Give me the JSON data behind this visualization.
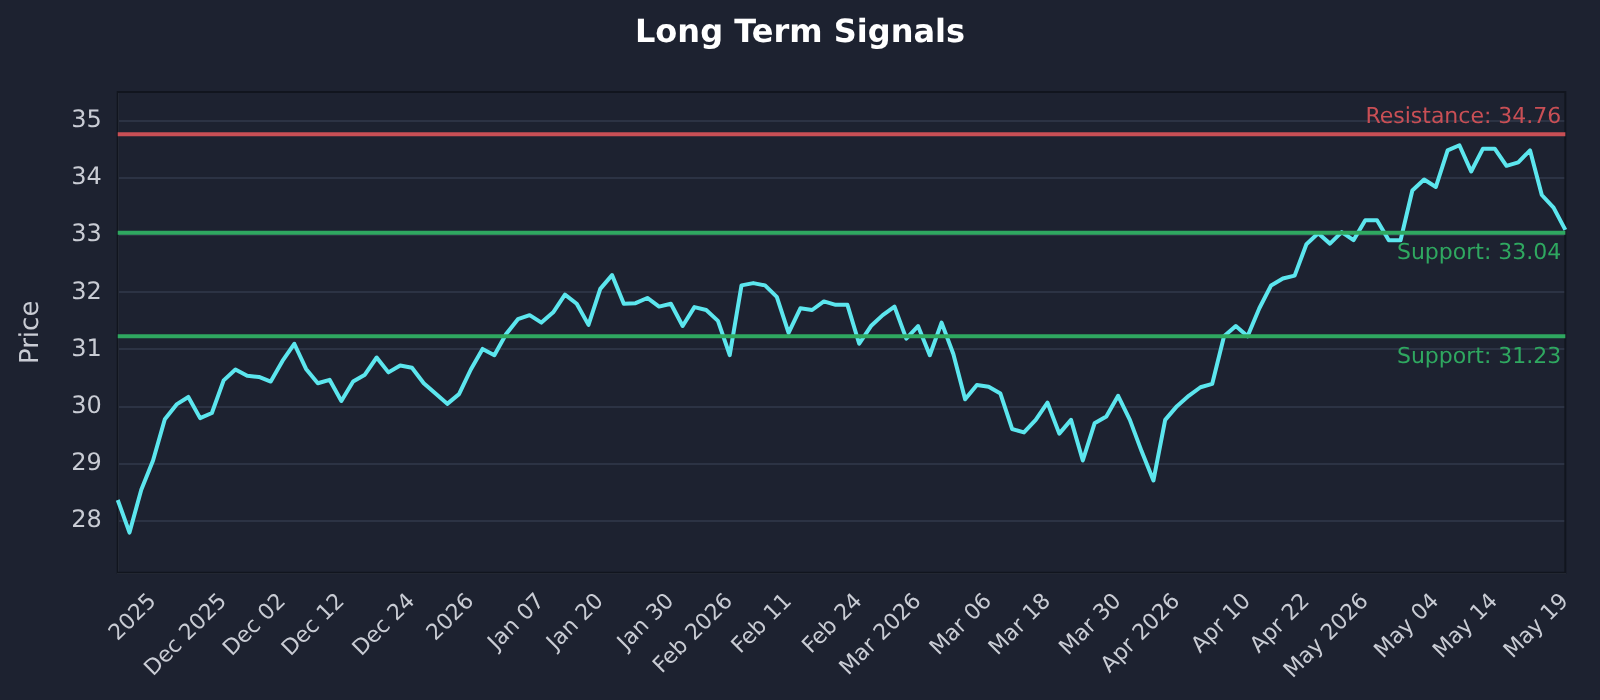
{
  "chart_data": {
    "type": "line",
    "title": "Long Term Signals",
    "ylabel": "Price",
    "categories": [
      null,
      null,
      null,
      "2025",
      null,
      null,
      null,
      null,
      null,
      "Dec 2025",
      null,
      null,
      null,
      null,
      "Dec 02",
      null,
      null,
      null,
      null,
      "Dec 12",
      null,
      null,
      null,
      null,
      null,
      "Dec 24",
      null,
      null,
      null,
      null,
      "2026",
      null,
      null,
      null,
      null,
      null,
      "Jan 07",
      null,
      null,
      null,
      null,
      "Jan 20",
      null,
      null,
      null,
      null,
      null,
      "Jan 30",
      null,
      null,
      null,
      null,
      "Feb 2026",
      null,
      null,
      null,
      null,
      "Feb 11",
      null,
      null,
      null,
      null,
      null,
      "Feb 24",
      null,
      null,
      null,
      null,
      "Mar 2026",
      null,
      null,
      null,
      null,
      null,
      "Mar 06",
      null,
      null,
      null,
      null,
      "Mar 18",
      null,
      null,
      null,
      null,
      null,
      "Mar 30",
      null,
      null,
      null,
      null,
      "Apr 2026",
      null,
      null,
      null,
      null,
      null,
      "Apr 10",
      null,
      null,
      null,
      null,
      "Apr 22",
      null,
      null,
      null,
      null,
      "May 2026",
      null,
      null,
      null,
      null,
      null,
      "May 04",
      null,
      null,
      null,
      null,
      "May 14",
      null,
      null,
      null,
      null,
      null,
      "May 19"
    ],
    "series": [
      {
        "color": "#5ce6ee",
        "values": [
          28.37,
          27.8,
          28.55,
          29.06,
          29.78,
          30.04,
          30.17,
          29.8,
          29.89,
          30.46,
          30.65,
          30.54,
          30.52,
          30.44,
          30.8,
          31.1,
          30.66,
          30.41,
          30.47,
          30.1,
          30.44,
          30.56,
          30.86,
          30.6,
          30.72,
          30.68,
          30.41,
          30.23,
          30.05,
          30.22,
          30.65,
          31.01,
          30.9,
          31.27,
          31.53,
          31.6,
          31.47,
          31.65,
          31.96,
          31.8,
          31.43,
          32.06,
          32.3,
          31.8,
          31.81,
          31.9,
          31.75,
          31.8,
          31.41,
          31.74,
          31.69,
          31.5,
          30.9,
          32.12,
          32.16,
          32.12,
          31.92,
          31.29,
          31.72,
          31.69,
          31.84,
          31.78,
          31.78,
          31.1,
          31.41,
          31.6,
          31.75,
          31.19,
          31.41,
          30.9,
          31.47,
          30.92,
          30.13,
          30.38,
          30.35,
          30.23,
          29.61,
          29.55,
          29.77,
          30.07,
          29.53,
          29.77,
          29.06,
          29.71,
          29.83,
          30.19,
          29.77,
          29.22,
          28.71,
          29.77,
          30.01,
          30.19,
          30.34,
          30.4,
          31.23,
          31.41,
          31.23,
          31.72,
          32.12,
          32.24,
          32.29,
          32.84,
          33.03,
          32.85,
          33.05,
          32.91,
          33.26,
          33.26,
          32.91,
          32.91,
          33.78,
          33.97,
          33.84,
          34.48,
          34.57,
          34.11,
          34.51,
          34.51,
          34.21,
          34.27,
          34.48,
          33.7,
          33.48,
          33.09
        ]
      }
    ],
    "ylim": [
      27.1,
      35.5
    ],
    "yticks": [
      28,
      29,
      30,
      31,
      32,
      33,
      34,
      35
    ],
    "grid": "y",
    "legend": false,
    "marker": "none",
    "line_style": "solid",
    "ref_lines": [
      {
        "axis": "y",
        "value": 34.76,
        "label": "Resistance: 34.76",
        "color": "#c94f55"
      },
      {
        "axis": "y",
        "value": 33.04,
        "label": "Support: 33.04",
        "color": "#2fa860"
      },
      {
        "axis": "y",
        "value": 31.23,
        "label": "Support: 31.23",
        "color": "#2fa860"
      }
    ]
  }
}
